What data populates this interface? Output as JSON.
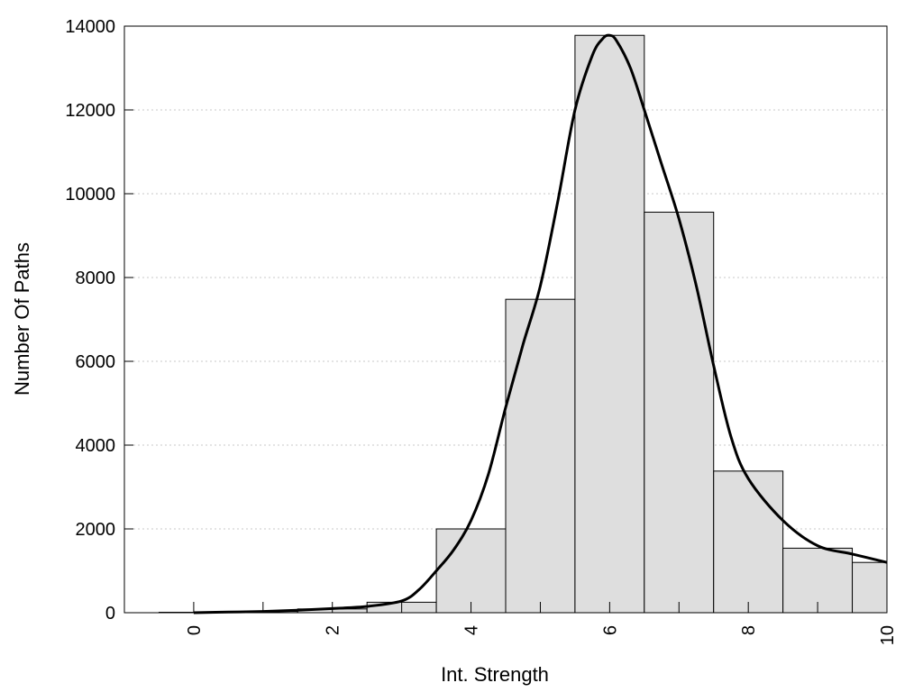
{
  "chart_data": {
    "type": "bar",
    "title": "",
    "xlabel": "Int. Strength",
    "ylabel": "Number Of Paths",
    "xlim": [
      -1,
      10
    ],
    "ylim": [
      0,
      14000
    ],
    "x_ticks": [
      0,
      2,
      4,
      6,
      8,
      10
    ],
    "y_ticks": [
      0,
      2000,
      4000,
      6000,
      8000,
      10000,
      12000,
      14000
    ],
    "grid": "horizontal-dotted",
    "legend": "none",
    "bars": [
      {
        "x": 0,
        "value": 10
      },
      {
        "x": 1,
        "value": 30
      },
      {
        "x": 2,
        "value": 90
      },
      {
        "x": 3,
        "value": 250
      },
      {
        "x": 4,
        "value": 2000
      },
      {
        "x": 5,
        "value": 7480
      },
      {
        "x": 6,
        "value": 13780
      },
      {
        "x": 7,
        "value": 9560
      },
      {
        "x": 8,
        "value": 3380
      },
      {
        "x": 9,
        "value": 1540
      },
      {
        "x": 10,
        "value": 1200
      }
    ],
    "bar_width": 1,
    "curve": {
      "x": [
        0,
        0.5,
        1,
        1.5,
        2,
        2.5,
        3,
        3.25,
        3.5,
        3.75,
        4,
        4.25,
        4.5,
        4.75,
        5,
        5.25,
        5.5,
        5.75,
        5.9,
        6,
        6.1,
        6.3,
        6.5,
        6.75,
        7,
        7.25,
        7.5,
        7.75,
        8,
        8.5,
        9,
        9.5,
        10
      ],
      "y": [
        0,
        15,
        30,
        60,
        100,
        150,
        280,
        550,
        1000,
        1500,
        2200,
        3300,
        4900,
        6400,
        7800,
        9800,
        12000,
        13300,
        13700,
        13780,
        13650,
        13000,
        12000,
        10700,
        9400,
        7800,
        5900,
        4200,
        3200,
        2200,
        1600,
        1400,
        1200
      ]
    },
    "colors": {
      "bar_fill": "#dedede",
      "bar_stroke": "#000000",
      "curve": "#000000",
      "grid": "#c8c8c8"
    }
  }
}
